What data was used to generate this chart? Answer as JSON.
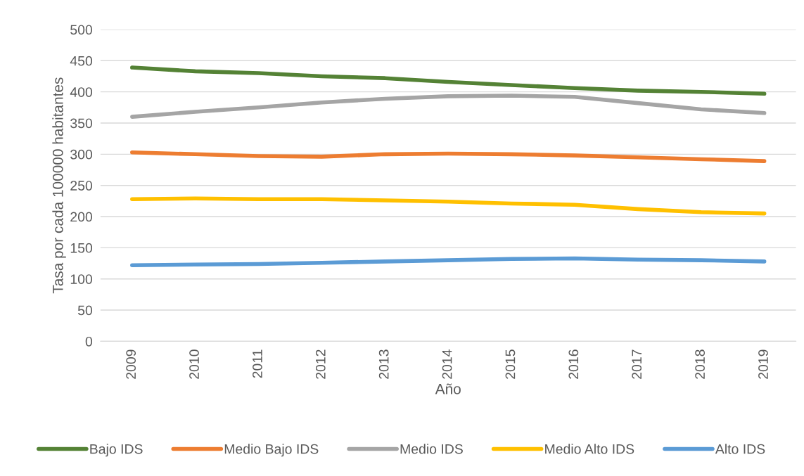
{
  "chart_data": {
    "type": "line",
    "xlabel": "Año",
    "ylabel": "Tasa por cada 100000 habitantes",
    "categories": [
      "2009",
      "2010",
      "2011",
      "2012",
      "2013",
      "2014",
      "2015",
      "2016",
      "2017",
      "2018",
      "2019"
    ],
    "series": [
      {
        "name": "Bajo IDS",
        "color": "#548235",
        "values": [
          439,
          433,
          430,
          425,
          422,
          416,
          411,
          406,
          402,
          400,
          397
        ]
      },
      {
        "name": "Medio Bajo IDS",
        "color": "#ed7d31",
        "values": [
          303,
          300,
          297,
          296,
          300,
          301,
          300,
          298,
          295,
          292,
          289
        ]
      },
      {
        "name": "Medio IDS",
        "color": "#a5a5a5",
        "values": [
          360,
          368,
          375,
          383,
          389,
          393,
          394,
          392,
          382,
          372,
          366
        ]
      },
      {
        "name": "Medio Alto IDS",
        "color": "#ffc000",
        "values": [
          228,
          229,
          228,
          228,
          226,
          224,
          221,
          219,
          212,
          207,
          205
        ]
      },
      {
        "name": "Alto IDS",
        "color": "#5b9bd5",
        "values": [
          122,
          123,
          124,
          126,
          128,
          130,
          132,
          133,
          131,
          130,
          128
        ]
      }
    ],
    "ylim": [
      0,
      500
    ],
    "yticks": [
      0,
      50,
      100,
      150,
      200,
      250,
      300,
      350,
      400,
      450,
      500
    ],
    "grid": "y",
    "legend": "bottom",
    "marker": "none",
    "line_style": "solid"
  }
}
